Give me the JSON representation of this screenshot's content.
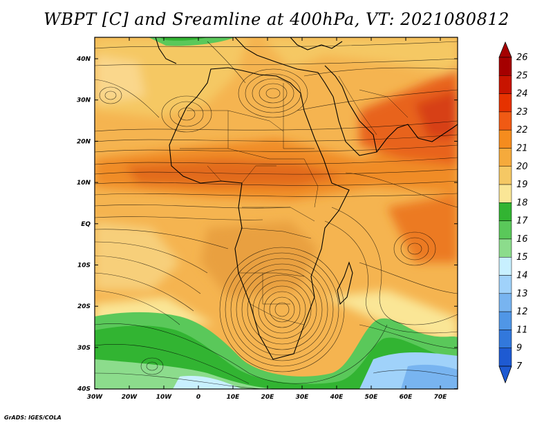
{
  "title": "WBPT [C] and Sreamline at 400hPa, VT: 2021080812",
  "credit": "GrADS: IGES/COLA",
  "map": {
    "variable": "WBPT",
    "units": "C",
    "level": "400hPa",
    "valid_time": "2021080812",
    "lon_labels": [
      "30W",
      "20W",
      "10W",
      "0",
      "10E",
      "20E",
      "30E",
      "40E",
      "50E",
      "60E",
      "70E"
    ],
    "lat_labels": [
      "40N",
      "30N",
      "20N",
      "10N",
      "EQ",
      "10S",
      "20S",
      "30S",
      "40S"
    ]
  },
  "colorbar": {
    "labels": [
      "26",
      "25",
      "24",
      "23",
      "22",
      "21",
      "20",
      "19",
      "18",
      "17",
      "16",
      "15",
      "14",
      "13",
      "12",
      "11",
      "9",
      "7"
    ],
    "colors": [
      "#a50000",
      "#c81400",
      "#e63200",
      "#f05a14",
      "#f58c1e",
      "#f5aa3c",
      "#f5c864",
      "#fae696",
      "#32b432",
      "#5ac85a",
      "#8cdc8c",
      "#c8f0ff",
      "#a0d2fa",
      "#78b4f0",
      "#5096e6",
      "#3278dc",
      "#1e5ad2"
    ]
  }
}
